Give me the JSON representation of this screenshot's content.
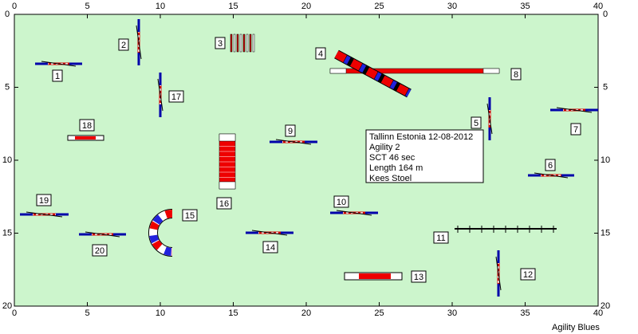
{
  "course_map": {
    "xlim": [
      0,
      40
    ],
    "ylim": [
      0,
      20
    ],
    "xticks": [
      0,
      5,
      10,
      15,
      20,
      25,
      30,
      35,
      40
    ],
    "yticks": [
      0,
      5,
      10,
      15,
      20
    ],
    "obstacle_labels": [
      "1",
      "2",
      "3",
      "4",
      "5",
      "6",
      "7",
      "8",
      "9",
      "10",
      "11",
      "12",
      "13",
      "14",
      "15",
      "16",
      "17",
      "18",
      "19",
      "20"
    ],
    "info": [
      "Tallinn Estonia 12-08-2012",
      "Agility 2",
      "SCT 46 sec",
      "Length 164 m",
      "Kees Stoel"
    ],
    "footer": "Agility Blues"
  }
}
